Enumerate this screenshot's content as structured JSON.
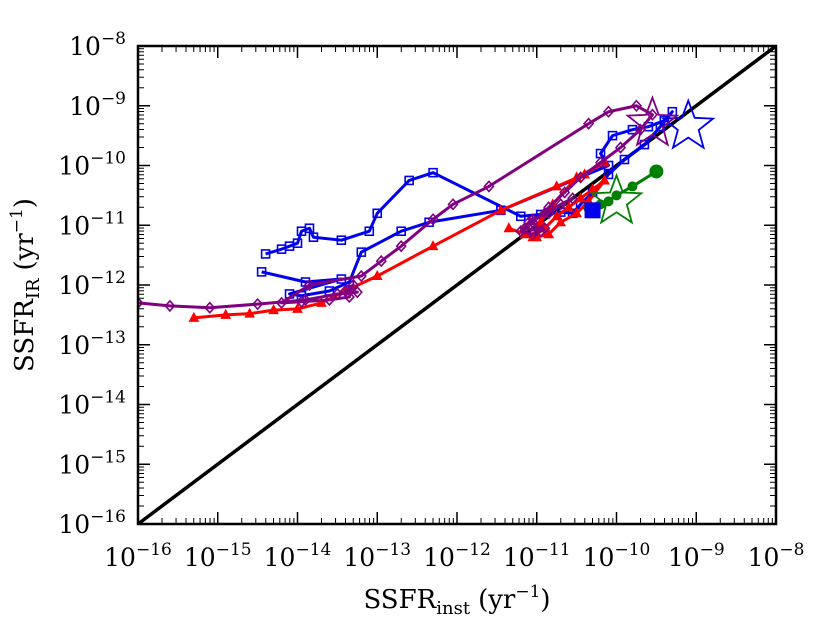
{
  "chart_data": {
    "type": "line",
    "scale": "log-log",
    "title": "",
    "xlabel": {
      "main": "SSFR",
      "sub": "inst",
      "unit": "(yr",
      "unit_exp": "−1",
      "close": ")"
    },
    "ylabel": {
      "main": "SSFR",
      "sub": "IR",
      "unit": "(yr",
      "unit_exp": "−1",
      "close": ")"
    },
    "xlim_log10": [
      -16,
      -8
    ],
    "ylim_log10": [
      -16,
      -8
    ],
    "x_ticks": [
      {
        "value": -16,
        "base": "10",
        "exp": "−16"
      },
      {
        "value": -15,
        "base": "10",
        "exp": "−15"
      },
      {
        "value": -14,
        "base": "10",
        "exp": "−14"
      },
      {
        "value": -13,
        "base": "10",
        "exp": "−13"
      },
      {
        "value": -12,
        "base": "10",
        "exp": "−12"
      },
      {
        "value": -11,
        "base": "10",
        "exp": "−11"
      },
      {
        "value": -10,
        "base": "10",
        "exp": "−10"
      },
      {
        "value": -9,
        "base": "10",
        "exp": "−9"
      },
      {
        "value": -8,
        "base": "10",
        "exp": "−8"
      }
    ],
    "y_ticks": [
      {
        "value": -16,
        "base": "10",
        "exp": "−16"
      },
      {
        "value": -15,
        "base": "10",
        "exp": "−15"
      },
      {
        "value": -14,
        "base": "10",
        "exp": "−14"
      },
      {
        "value": -13,
        "base": "10",
        "exp": "−13"
      },
      {
        "value": -12,
        "base": "10",
        "exp": "−12"
      },
      {
        "value": -11,
        "base": "10",
        "exp": "−11"
      },
      {
        "value": -10,
        "base": "10",
        "exp": "−10"
      },
      {
        "value": -9,
        "base": "10",
        "exp": "−9"
      },
      {
        "value": -8,
        "base": "10",
        "exp": "−8"
      }
    ],
    "reference_line": {
      "name": "one-to-one",
      "color": "#000000",
      "points_log10": [
        [
          -16,
          -16
        ],
        [
          -8,
          -8
        ]
      ]
    },
    "series": [
      {
        "name": "blue",
        "color": "#0000ee",
        "marker": "square",
        "points_log10": [
          [
            -14.45,
            -11.78
          ],
          [
            -13.9,
            -11.95
          ],
          [
            -13.45,
            -11.9
          ],
          [
            -14.1,
            -12.15
          ],
          [
            -13.95,
            -12.18
          ],
          [
            -13.6,
            -12.1
          ],
          [
            -13.35,
            -11.95
          ],
          [
            -13.2,
            -11.45
          ],
          [
            -12.7,
            -11.1
          ],
          [
            -12.35,
            -10.95
          ],
          [
            -11.45,
            -10.75
          ],
          [
            -10.1,
            -10.0
          ],
          [
            -10.2,
            -9.8
          ],
          [
            -10.05,
            -9.5
          ],
          [
            -9.8,
            -9.4
          ],
          [
            -9.6,
            -9.35
          ],
          [
            -9.4,
            -9.25
          ],
          [
            -9.3,
            -9.1
          ],
          [
            -9.45,
            -9.35
          ],
          [
            -9.65,
            -9.65
          ],
          [
            -9.9,
            -9.9
          ],
          [
            -10.1,
            -10.15
          ],
          [
            -10.3,
            -10.45
          ],
          [
            -10.45,
            -10.65
          ],
          [
            -10.55,
            -10.8
          ],
          [
            -10.7,
            -10.78
          ],
          [
            -10.95,
            -10.82
          ],
          [
            -11.2,
            -10.85
          ],
          [
            -12.3,
            -10.12
          ],
          [
            -12.6,
            -10.25
          ],
          [
            -13.0,
            -10.8
          ],
          [
            -13.1,
            -11.1
          ],
          [
            -13.45,
            -11.25
          ],
          [
            -13.8,
            -11.2
          ],
          [
            -13.85,
            -11.05
          ],
          [
            -13.95,
            -11.1
          ],
          [
            -14.0,
            -11.3
          ],
          [
            -14.1,
            -11.35
          ],
          [
            -14.2,
            -11.4
          ],
          [
            -14.4,
            -11.48
          ]
        ]
      },
      {
        "name": "red",
        "color": "#ff0000",
        "marker": "triangle",
        "points_log10": [
          [
            -15.3,
            -12.55
          ],
          [
            -14.9,
            -12.5
          ],
          [
            -14.6,
            -12.48
          ],
          [
            -14.3,
            -12.42
          ],
          [
            -14.0,
            -12.4
          ],
          [
            -13.7,
            -12.3
          ],
          [
            -13.4,
            -12.1
          ],
          [
            -13.0,
            -11.85
          ],
          [
            -12.3,
            -11.35
          ],
          [
            -11.45,
            -10.75
          ],
          [
            -10.75,
            -10.35
          ],
          [
            -10.4,
            -10.15
          ],
          [
            -10.15,
            -9.95
          ],
          [
            -10.5,
            -10.2
          ],
          [
            -10.8,
            -10.65
          ],
          [
            -10.95,
            -10.95
          ],
          [
            -11.05,
            -11.2
          ],
          [
            -10.9,
            -11.05
          ],
          [
            -10.75,
            -10.85
          ],
          [
            -10.6,
            -10.7
          ],
          [
            -10.45,
            -10.55
          ],
          [
            -10.3,
            -10.4
          ],
          [
            -10.15,
            -10.25
          ],
          [
            -10.35,
            -10.6
          ],
          [
            -10.5,
            -10.8
          ],
          [
            -10.7,
            -10.95
          ],
          [
            -10.85,
            -11.15
          ],
          [
            -11.0,
            -11.2
          ],
          [
            -11.15,
            -11.15
          ],
          [
            -11.35,
            -11.05
          ]
        ]
      },
      {
        "name": "purple",
        "color": "#800080",
        "marker": "diamond",
        "points_log10": [
          [
            -16.0,
            -12.3
          ],
          [
            -15.6,
            -12.35
          ],
          [
            -15.1,
            -12.38
          ],
          [
            -14.5,
            -12.32
          ],
          [
            -13.9,
            -12.25
          ],
          [
            -13.5,
            -12.15
          ],
          [
            -13.25,
            -12.12
          ],
          [
            -13.4,
            -12.1
          ],
          [
            -13.3,
            -12.0
          ],
          [
            -13.35,
            -12.2
          ],
          [
            -13.6,
            -12.25
          ],
          [
            -13.95,
            -12.28
          ],
          [
            -14.2,
            -12.3
          ],
          [
            -13.85,
            -12.0
          ],
          [
            -13.2,
            -11.85
          ],
          [
            -12.95,
            -11.6
          ],
          [
            -12.7,
            -11.35
          ],
          [
            -12.3,
            -10.9
          ],
          [
            -12.05,
            -10.65
          ],
          [
            -11.6,
            -10.35
          ],
          [
            -10.35,
            -9.3
          ],
          [
            -10.1,
            -9.1
          ],
          [
            -9.75,
            -9.0
          ],
          [
            -9.55,
            -9.15
          ],
          [
            -9.7,
            -9.4
          ],
          [
            -9.95,
            -9.7
          ],
          [
            -10.2,
            -9.95
          ],
          [
            -10.45,
            -10.2
          ],
          [
            -10.65,
            -10.45
          ],
          [
            -10.85,
            -10.7
          ],
          [
            -11.05,
            -10.95
          ],
          [
            -10.95,
            -11.1
          ],
          [
            -11.15,
            -11.05
          ],
          [
            -11.05,
            -10.9
          ],
          [
            -10.85,
            -10.8
          ],
          [
            -10.7,
            -10.65
          ],
          [
            -10.55,
            -10.55
          ],
          [
            -10.9,
            -10.8
          ],
          [
            -11.1,
            -10.95
          ],
          [
            -11.2,
            -11.1
          ],
          [
            -11.05,
            -11.15
          ],
          [
            -10.9,
            -11.05
          ]
        ]
      },
      {
        "name": "green",
        "color": "#008000",
        "marker": "circle",
        "points_log10": [
          [
            -9.5,
            -10.1
          ],
          [
            -9.8,
            -10.35
          ],
          [
            -10.0,
            -10.5
          ],
          [
            -10.1,
            -10.6
          ],
          [
            -10.2,
            -10.65
          ],
          [
            -10.35,
            -10.72
          ]
        ]
      }
    ],
    "end_markers": [
      {
        "name": "blue-star",
        "series": "blue",
        "color": "#0000ee",
        "shape": "star",
        "at_log10": [
          -9.1,
          -9.35
        ]
      },
      {
        "name": "purple-star",
        "series": "purple",
        "color": "#800080",
        "shape": "star",
        "at_log10": [
          -9.55,
          -9.3
        ]
      },
      {
        "name": "green-star",
        "series": "green",
        "color": "#008000",
        "shape": "star",
        "at_log10": [
          -10.0,
          -10.6
        ]
      },
      {
        "name": "blue-filled-square",
        "series": "blue",
        "color": "#0000ee",
        "shape": "filled-square",
        "at_log10": [
          -10.3,
          -10.75
        ]
      },
      {
        "name": "green-filled-circle",
        "series": "green",
        "color": "#008000",
        "shape": "filled-circle",
        "at_log10": [
          -9.5,
          -10.1
        ]
      }
    ]
  }
}
